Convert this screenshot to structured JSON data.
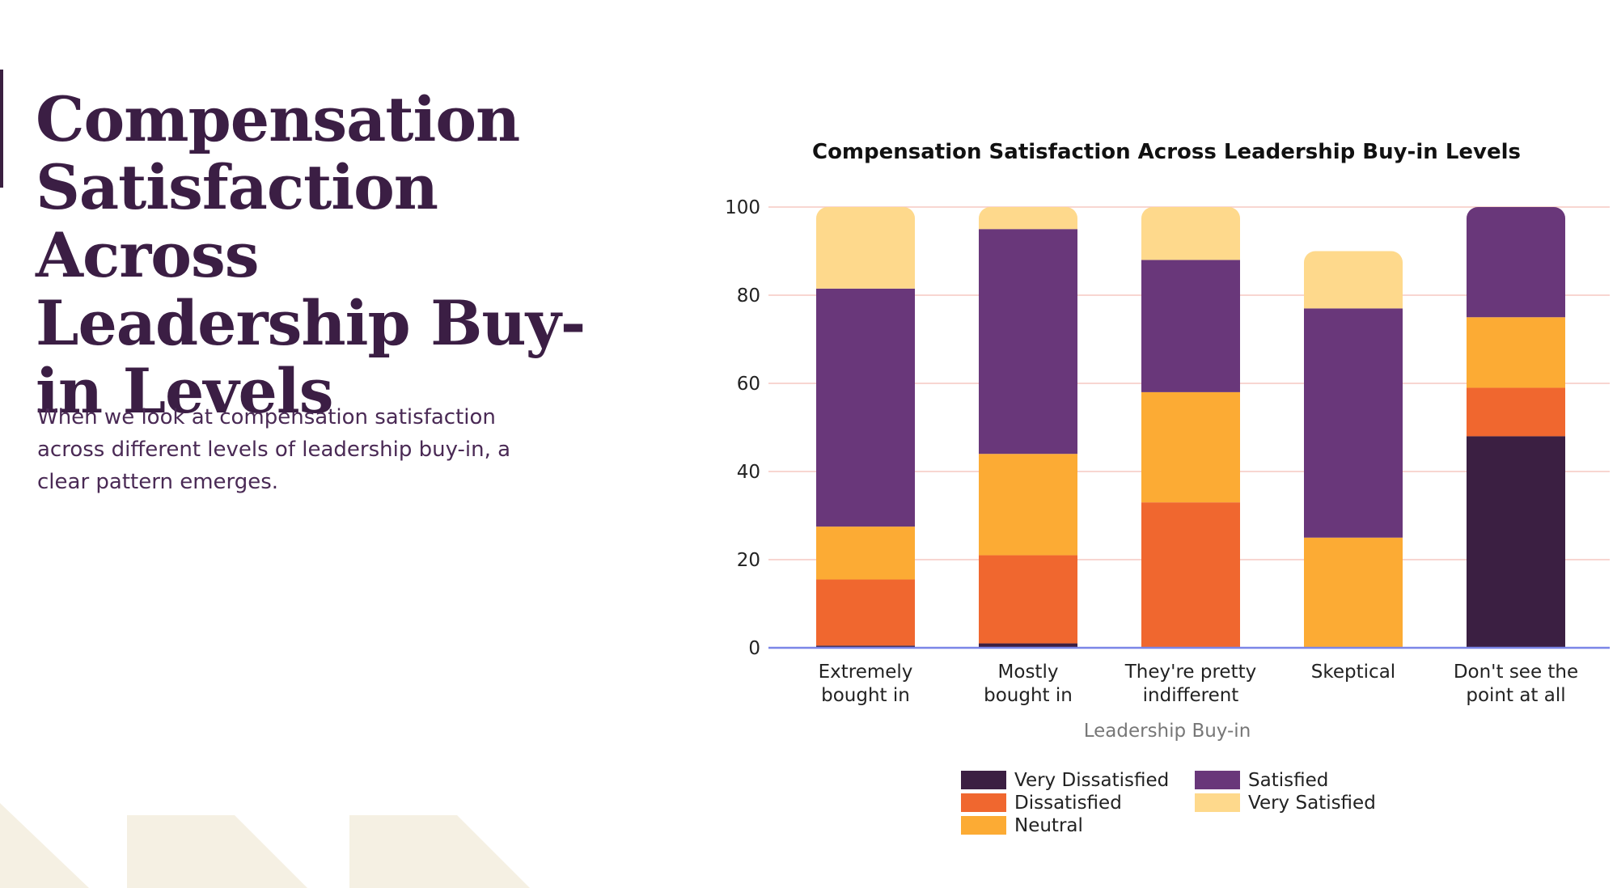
{
  "slide": {
    "title": "Compensation Satisfaction Across Leadership Buy-in Levels",
    "description": "When we look at compensation satisfaction across different levels of leadership buy-in, a clear pattern emerges."
  },
  "colors": {
    "title_text": "#3b1e44",
    "accent_bar": "#3a1f40",
    "decor_shape": "#f5f0e3"
  },
  "chart_data": {
    "type": "bar",
    "stacked": true,
    "title": "Compensation Satisfaction Across Leadership Buy-in Levels",
    "xlabel": "Leadership Buy-in",
    "ylabel": "",
    "ylim": [
      0,
      100
    ],
    "yticks": [
      0,
      20,
      40,
      60,
      80,
      100
    ],
    "grid": true,
    "legend_position": "bottom-center",
    "categories": [
      [
        "Extremely",
        "bought in"
      ],
      [
        "Mostly",
        "bought in"
      ],
      [
        "They're pretty",
        "indifferent"
      ],
      [
        "Skeptical"
      ],
      [
        "Don't see the",
        "point at all"
      ]
    ],
    "series": [
      {
        "name": "Very Dissatisfied",
        "color": "#3b1f42",
        "values": [
          0.5,
          1,
          0,
          0,
          48
        ]
      },
      {
        "name": "Dissatisfied",
        "color": "#f0672f",
        "values": [
          15,
          20,
          33,
          0,
          11
        ]
      },
      {
        "name": "Neutral",
        "color": "#fcab34",
        "values": [
          12,
          23,
          25,
          25,
          16
        ]
      },
      {
        "name": "Satisfied",
        "color": "#69377a",
        "values": [
          54,
          51,
          30,
          52,
          25
        ]
      },
      {
        "name": "Very Satisfied",
        "color": "#fed98c",
        "values": [
          18.5,
          5,
          12,
          13,
          0
        ]
      }
    ]
  }
}
